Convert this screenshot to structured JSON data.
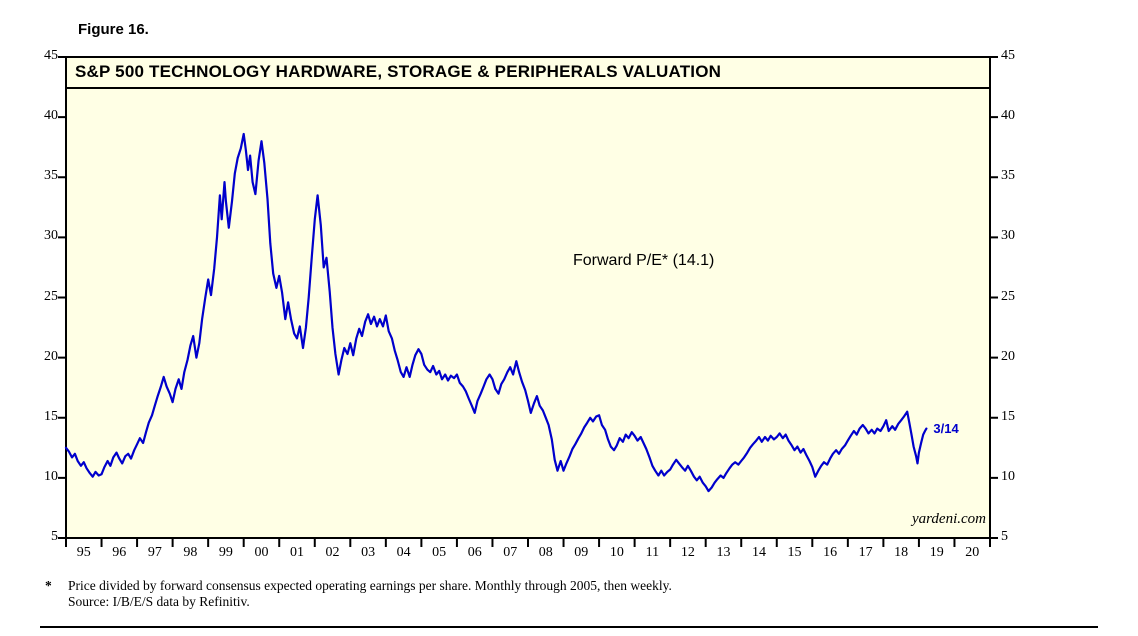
{
  "figure_label": "Figure 16.",
  "watermark": "yardeni.com",
  "footnote": {
    "marker": "*",
    "line1": "Price divided by forward consensus expected operating earnings per share. Monthly through 2005, then weekly.",
    "line2": "Source: I/B/E/S data by Refinitiv."
  },
  "chart_data": {
    "type": "line",
    "title": "S&P 500 TECHNOLOGY HARDWARE, STORAGE & PERIPHERALS VALUATION",
    "annotation": "Forward P/E* (14.1)",
    "latest_label": "3/14",
    "latest_value": 14.1,
    "plot_bg": "#FFFFE5",
    "border_color": "#000000",
    "series": [
      {
        "name": "Forward P/E",
        "color": "#0000CC"
      }
    ],
    "x_range": [
      1995,
      2021
    ],
    "y_range": [
      5,
      45
    ],
    "y_ticks": [
      5,
      10,
      15,
      20,
      25,
      30,
      35,
      40,
      45
    ],
    "x_tick_labels": [
      "95",
      "96",
      "97",
      "98",
      "99",
      "00",
      "01",
      "02",
      "03",
      "04",
      "05",
      "06",
      "07",
      "08",
      "09",
      "10",
      "11",
      "12",
      "13",
      "14",
      "15",
      "16",
      "17",
      "18",
      "19",
      "20"
    ],
    "grid": false,
    "legend": "none",
    "points": [
      [
        1995.0,
        12.5
      ],
      [
        1995.08,
        12.2
      ],
      [
        1995.17,
        11.7
      ],
      [
        1995.25,
        12.0
      ],
      [
        1995.33,
        11.4
      ],
      [
        1995.42,
        11.0
      ],
      [
        1995.5,
        11.3
      ],
      [
        1995.58,
        10.8
      ],
      [
        1995.67,
        10.4
      ],
      [
        1995.75,
        10.1
      ],
      [
        1995.83,
        10.5
      ],
      [
        1995.92,
        10.2
      ],
      [
        1996.0,
        10.3
      ],
      [
        1996.08,
        10.9
      ],
      [
        1996.17,
        11.4
      ],
      [
        1996.25,
        11.0
      ],
      [
        1996.33,
        11.7
      ],
      [
        1996.42,
        12.1
      ],
      [
        1996.5,
        11.6
      ],
      [
        1996.58,
        11.2
      ],
      [
        1996.67,
        11.8
      ],
      [
        1996.75,
        12.0
      ],
      [
        1996.83,
        11.6
      ],
      [
        1996.92,
        12.3
      ],
      [
        1997.0,
        12.8
      ],
      [
        1997.08,
        13.3
      ],
      [
        1997.17,
        12.9
      ],
      [
        1997.25,
        13.8
      ],
      [
        1997.33,
        14.6
      ],
      [
        1997.42,
        15.2
      ],
      [
        1997.5,
        16.0
      ],
      [
        1997.58,
        16.8
      ],
      [
        1997.67,
        17.6
      ],
      [
        1997.75,
        18.4
      ],
      [
        1997.83,
        17.6
      ],
      [
        1997.92,
        17.0
      ],
      [
        1998.0,
        16.3
      ],
      [
        1998.08,
        17.4
      ],
      [
        1998.17,
        18.2
      ],
      [
        1998.25,
        17.4
      ],
      [
        1998.33,
        18.8
      ],
      [
        1998.42,
        19.8
      ],
      [
        1998.5,
        21.0
      ],
      [
        1998.58,
        21.8
      ],
      [
        1998.67,
        20.0
      ],
      [
        1998.75,
        21.2
      ],
      [
        1998.83,
        23.2
      ],
      [
        1998.92,
        25.0
      ],
      [
        1999.0,
        26.5
      ],
      [
        1999.08,
        25.2
      ],
      [
        1999.17,
        27.4
      ],
      [
        1999.25,
        30.0
      ],
      [
        1999.33,
        33.5
      ],
      [
        1999.38,
        31.5
      ],
      [
        1999.46,
        34.6
      ],
      [
        1999.5,
        33.0
      ],
      [
        1999.58,
        30.8
      ],
      [
        1999.67,
        33.0
      ],
      [
        1999.75,
        35.3
      ],
      [
        1999.83,
        36.6
      ],
      [
        1999.92,
        37.4
      ],
      [
        2000.0,
        38.6
      ],
      [
        2000.06,
        37.3
      ],
      [
        2000.12,
        35.6
      ],
      [
        2000.18,
        36.8
      ],
      [
        2000.25,
        34.6
      ],
      [
        2000.33,
        33.6
      ],
      [
        2000.42,
        36.4
      ],
      [
        2000.5,
        38.0
      ],
      [
        2000.58,
        36.2
      ],
      [
        2000.67,
        33.2
      ],
      [
        2000.75,
        29.5
      ],
      [
        2000.83,
        27.0
      ],
      [
        2000.92,
        25.8
      ],
      [
        2001.0,
        26.8
      ],
      [
        2001.08,
        25.4
      ],
      [
        2001.17,
        23.2
      ],
      [
        2001.25,
        24.6
      ],
      [
        2001.33,
        23.2
      ],
      [
        2001.42,
        22.0
      ],
      [
        2001.5,
        21.6
      ],
      [
        2001.58,
        22.6
      ],
      [
        2001.67,
        20.8
      ],
      [
        2001.75,
        22.5
      ],
      [
        2001.83,
        25.0
      ],
      [
        2001.92,
        28.5
      ],
      [
        2002.0,
        31.5
      ],
      [
        2002.08,
        33.5
      ],
      [
        2002.17,
        31.0
      ],
      [
        2002.25,
        27.5
      ],
      [
        2002.33,
        28.3
      ],
      [
        2002.42,
        25.5
      ],
      [
        2002.5,
        22.5
      ],
      [
        2002.58,
        20.3
      ],
      [
        2002.67,
        18.6
      ],
      [
        2002.75,
        19.8
      ],
      [
        2002.83,
        20.8
      ],
      [
        2002.92,
        20.3
      ],
      [
        2003.0,
        21.2
      ],
      [
        2003.08,
        20.2
      ],
      [
        2003.17,
        21.6
      ],
      [
        2003.25,
        22.4
      ],
      [
        2003.33,
        21.8
      ],
      [
        2003.42,
        23.0
      ],
      [
        2003.5,
        23.6
      ],
      [
        2003.58,
        22.8
      ],
      [
        2003.67,
        23.4
      ],
      [
        2003.75,
        22.6
      ],
      [
        2003.83,
        23.2
      ],
      [
        2003.92,
        22.6
      ],
      [
        2004.0,
        23.5
      ],
      [
        2004.08,
        22.2
      ],
      [
        2004.17,
        21.6
      ],
      [
        2004.25,
        20.6
      ],
      [
        2004.33,
        19.8
      ],
      [
        2004.42,
        18.8
      ],
      [
        2004.5,
        18.4
      ],
      [
        2004.58,
        19.2
      ],
      [
        2004.67,
        18.4
      ],
      [
        2004.75,
        19.4
      ],
      [
        2004.83,
        20.2
      ],
      [
        2004.92,
        20.7
      ],
      [
        2005.0,
        20.3
      ],
      [
        2005.08,
        19.4
      ],
      [
        2005.17,
        19.0
      ],
      [
        2005.25,
        18.8
      ],
      [
        2005.33,
        19.3
      ],
      [
        2005.42,
        18.6
      ],
      [
        2005.5,
        18.9
      ],
      [
        2005.58,
        18.2
      ],
      [
        2005.67,
        18.6
      ],
      [
        2005.75,
        18.1
      ],
      [
        2005.83,
        18.5
      ],
      [
        2005.92,
        18.3
      ],
      [
        2006.0,
        18.6
      ],
      [
        2006.08,
        17.9
      ],
      [
        2006.17,
        17.6
      ],
      [
        2006.25,
        17.2
      ],
      [
        2006.33,
        16.6
      ],
      [
        2006.42,
        16.0
      ],
      [
        2006.5,
        15.4
      ],
      [
        2006.58,
        16.4
      ],
      [
        2006.67,
        17.0
      ],
      [
        2006.75,
        17.6
      ],
      [
        2006.83,
        18.2
      ],
      [
        2006.92,
        18.6
      ],
      [
        2007.0,
        18.2
      ],
      [
        2007.08,
        17.4
      ],
      [
        2007.17,
        17.0
      ],
      [
        2007.25,
        17.8
      ],
      [
        2007.33,
        18.2
      ],
      [
        2007.42,
        18.8
      ],
      [
        2007.5,
        19.2
      ],
      [
        2007.58,
        18.6
      ],
      [
        2007.67,
        19.7
      ],
      [
        2007.75,
        18.8
      ],
      [
        2007.83,
        18.0
      ],
      [
        2007.92,
        17.3
      ],
      [
        2008.0,
        16.4
      ],
      [
        2008.08,
        15.4
      ],
      [
        2008.17,
        16.2
      ],
      [
        2008.25,
        16.8
      ],
      [
        2008.33,
        16.0
      ],
      [
        2008.42,
        15.6
      ],
      [
        2008.5,
        15.0
      ],
      [
        2008.58,
        14.4
      ],
      [
        2008.67,
        13.2
      ],
      [
        2008.75,
        11.5
      ],
      [
        2008.83,
        10.6
      ],
      [
        2008.92,
        11.4
      ],
      [
        2009.0,
        10.6
      ],
      [
        2009.08,
        11.2
      ],
      [
        2009.17,
        11.8
      ],
      [
        2009.25,
        12.4
      ],
      [
        2009.33,
        12.8
      ],
      [
        2009.42,
        13.3
      ],
      [
        2009.5,
        13.7
      ],
      [
        2009.58,
        14.2
      ],
      [
        2009.67,
        14.6
      ],
      [
        2009.75,
        15.0
      ],
      [
        2009.83,
        14.7
      ],
      [
        2009.92,
        15.1
      ],
      [
        2010.0,
        15.2
      ],
      [
        2010.08,
        14.4
      ],
      [
        2010.17,
        14.0
      ],
      [
        2010.25,
        13.2
      ],
      [
        2010.33,
        12.6
      ],
      [
        2010.42,
        12.3
      ],
      [
        2010.5,
        12.7
      ],
      [
        2010.58,
        13.3
      ],
      [
        2010.67,
        13.0
      ],
      [
        2010.75,
        13.6
      ],
      [
        2010.83,
        13.3
      ],
      [
        2010.92,
        13.8
      ],
      [
        2011.0,
        13.5
      ],
      [
        2011.08,
        13.1
      ],
      [
        2011.17,
        13.4
      ],
      [
        2011.25,
        12.9
      ],
      [
        2011.33,
        12.4
      ],
      [
        2011.42,
        11.7
      ],
      [
        2011.5,
        11.0
      ],
      [
        2011.58,
        10.6
      ],
      [
        2011.67,
        10.2
      ],
      [
        2011.75,
        10.6
      ],
      [
        2011.83,
        10.2
      ],
      [
        2011.92,
        10.5
      ],
      [
        2012.0,
        10.7
      ],
      [
        2012.08,
        11.1
      ],
      [
        2012.17,
        11.5
      ],
      [
        2012.25,
        11.2
      ],
      [
        2012.33,
        10.9
      ],
      [
        2012.42,
        10.6
      ],
      [
        2012.5,
        11.0
      ],
      [
        2012.58,
        10.6
      ],
      [
        2012.67,
        10.1
      ],
      [
        2012.75,
        9.8
      ],
      [
        2012.83,
        10.1
      ],
      [
        2012.92,
        9.6
      ],
      [
        2013.0,
        9.3
      ],
      [
        2013.08,
        8.9
      ],
      [
        2013.17,
        9.2
      ],
      [
        2013.25,
        9.6
      ],
      [
        2013.33,
        9.9
      ],
      [
        2013.42,
        10.2
      ],
      [
        2013.5,
        10.0
      ],
      [
        2013.58,
        10.4
      ],
      [
        2013.67,
        10.8
      ],
      [
        2013.75,
        11.1
      ],
      [
        2013.83,
        11.3
      ],
      [
        2013.92,
        11.1
      ],
      [
        2014.0,
        11.4
      ],
      [
        2014.08,
        11.7
      ],
      [
        2014.17,
        12.1
      ],
      [
        2014.25,
        12.5
      ],
      [
        2014.33,
        12.8
      ],
      [
        2014.42,
        13.1
      ],
      [
        2014.5,
        13.4
      ],
      [
        2014.58,
        13.0
      ],
      [
        2014.67,
        13.4
      ],
      [
        2014.75,
        13.1
      ],
      [
        2014.83,
        13.5
      ],
      [
        2014.92,
        13.2
      ],
      [
        2015.0,
        13.4
      ],
      [
        2015.08,
        13.7
      ],
      [
        2015.17,
        13.3
      ],
      [
        2015.25,
        13.6
      ],
      [
        2015.33,
        13.1
      ],
      [
        2015.42,
        12.7
      ],
      [
        2015.5,
        12.3
      ],
      [
        2015.58,
        12.6
      ],
      [
        2015.67,
        12.1
      ],
      [
        2015.75,
        12.4
      ],
      [
        2015.83,
        11.9
      ],
      [
        2015.92,
        11.4
      ],
      [
        2016.0,
        10.9
      ],
      [
        2016.08,
        10.1
      ],
      [
        2016.17,
        10.6
      ],
      [
        2016.25,
        11.0
      ],
      [
        2016.33,
        11.3
      ],
      [
        2016.42,
        11.1
      ],
      [
        2016.5,
        11.6
      ],
      [
        2016.58,
        12.0
      ],
      [
        2016.67,
        12.3
      ],
      [
        2016.75,
        12.0
      ],
      [
        2016.83,
        12.4
      ],
      [
        2016.92,
        12.7
      ],
      [
        2017.0,
        13.1
      ],
      [
        2017.08,
        13.5
      ],
      [
        2017.17,
        13.9
      ],
      [
        2017.25,
        13.6
      ],
      [
        2017.33,
        14.1
      ],
      [
        2017.42,
        14.4
      ],
      [
        2017.5,
        14.1
      ],
      [
        2017.58,
        13.7
      ],
      [
        2017.67,
        14.0
      ],
      [
        2017.75,
        13.7
      ],
      [
        2017.83,
        14.1
      ],
      [
        2017.92,
        13.9
      ],
      [
        2018.0,
        14.3
      ],
      [
        2018.08,
        14.8
      ],
      [
        2018.15,
        13.9
      ],
      [
        2018.25,
        14.3
      ],
      [
        2018.33,
        14.0
      ],
      [
        2018.42,
        14.5
      ],
      [
        2018.5,
        14.8
      ],
      [
        2018.58,
        15.1
      ],
      [
        2018.67,
        15.5
      ],
      [
        2018.73,
        14.6
      ],
      [
        2018.79,
        13.6
      ],
      [
        2018.85,
        12.6
      ],
      [
        2018.92,
        11.8
      ],
      [
        2018.96,
        11.2
      ],
      [
        2019.0,
        12.1
      ],
      [
        2019.06,
        12.9
      ],
      [
        2019.12,
        13.6
      ],
      [
        2019.17,
        13.9
      ],
      [
        2019.21,
        14.1
      ]
    ]
  }
}
